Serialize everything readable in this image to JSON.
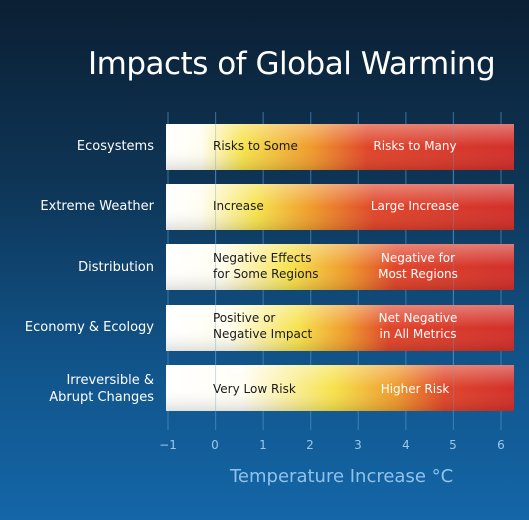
{
  "chart_data": {
    "type": "bar",
    "title": "Impacts of Global Warming",
    "xlabel": "Temperature Increase °C",
    "xlim": [
      -1,
      6
    ],
    "x_ticks": [
      "−1",
      "0",
      "1",
      "2",
      "3",
      "4",
      "5",
      "6"
    ],
    "grid": true,
    "gradient_colors": [
      "#ffffff",
      "#f4e04a",
      "#ee8a2a",
      "#d6312a"
    ],
    "categories": [
      {
        "label": "Ecosystems",
        "low_text": "Risks to Some",
        "high_text": "Risks to Many",
        "range": [
          -1,
          6.3
        ]
      },
      {
        "label": "Extreme Weather",
        "low_text": "Increase",
        "high_text": "Large Increase",
        "range": [
          -1,
          6.3
        ]
      },
      {
        "label": "Distribution",
        "low_text": "Negative Effects\nfor Some Regions",
        "high_text": "Negative for\nMost Regions",
        "range": [
          -1,
          6.3
        ]
      },
      {
        "label": "Economy & Ecology",
        "low_text": "Positive or\nNegative Impact",
        "high_text": "Net Negative\nin All Metrics",
        "range": [
          -1,
          6.3
        ]
      },
      {
        "label": "Irreversible &\nAbrupt  Changes",
        "low_text": "Very Low Risk",
        "high_text": "Higher Risk",
        "range": [
          -1,
          6.3
        ]
      }
    ]
  }
}
